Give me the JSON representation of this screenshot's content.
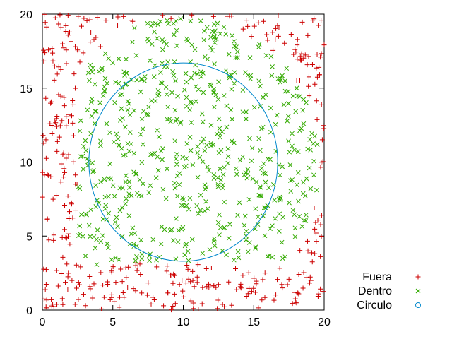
{
  "chart_data": {
    "type": "scatter",
    "title": "",
    "xlabel": "",
    "ylabel": "",
    "xlim": [
      0,
      20
    ],
    "ylim": [
      0,
      20
    ],
    "xticks": [
      "0",
      "5",
      "10",
      "15",
      "20"
    ],
    "yticks": [
      "0",
      "5",
      "10",
      "15",
      "20"
    ],
    "grid": false,
    "legend_position": "outside-right-bottom",
    "series": [
      {
        "name": "Fuera",
        "marker": "plus",
        "color": "#cc0000",
        "points": []
      },
      {
        "name": "Dentro",
        "marker": "cross",
        "color": "#33aa00",
        "points": []
      },
      {
        "name": "Circulo",
        "marker": "circle-line",
        "color": "#0088cc",
        "center": [
          10,
          10
        ],
        "radius": 6.7
      }
    ]
  }
}
